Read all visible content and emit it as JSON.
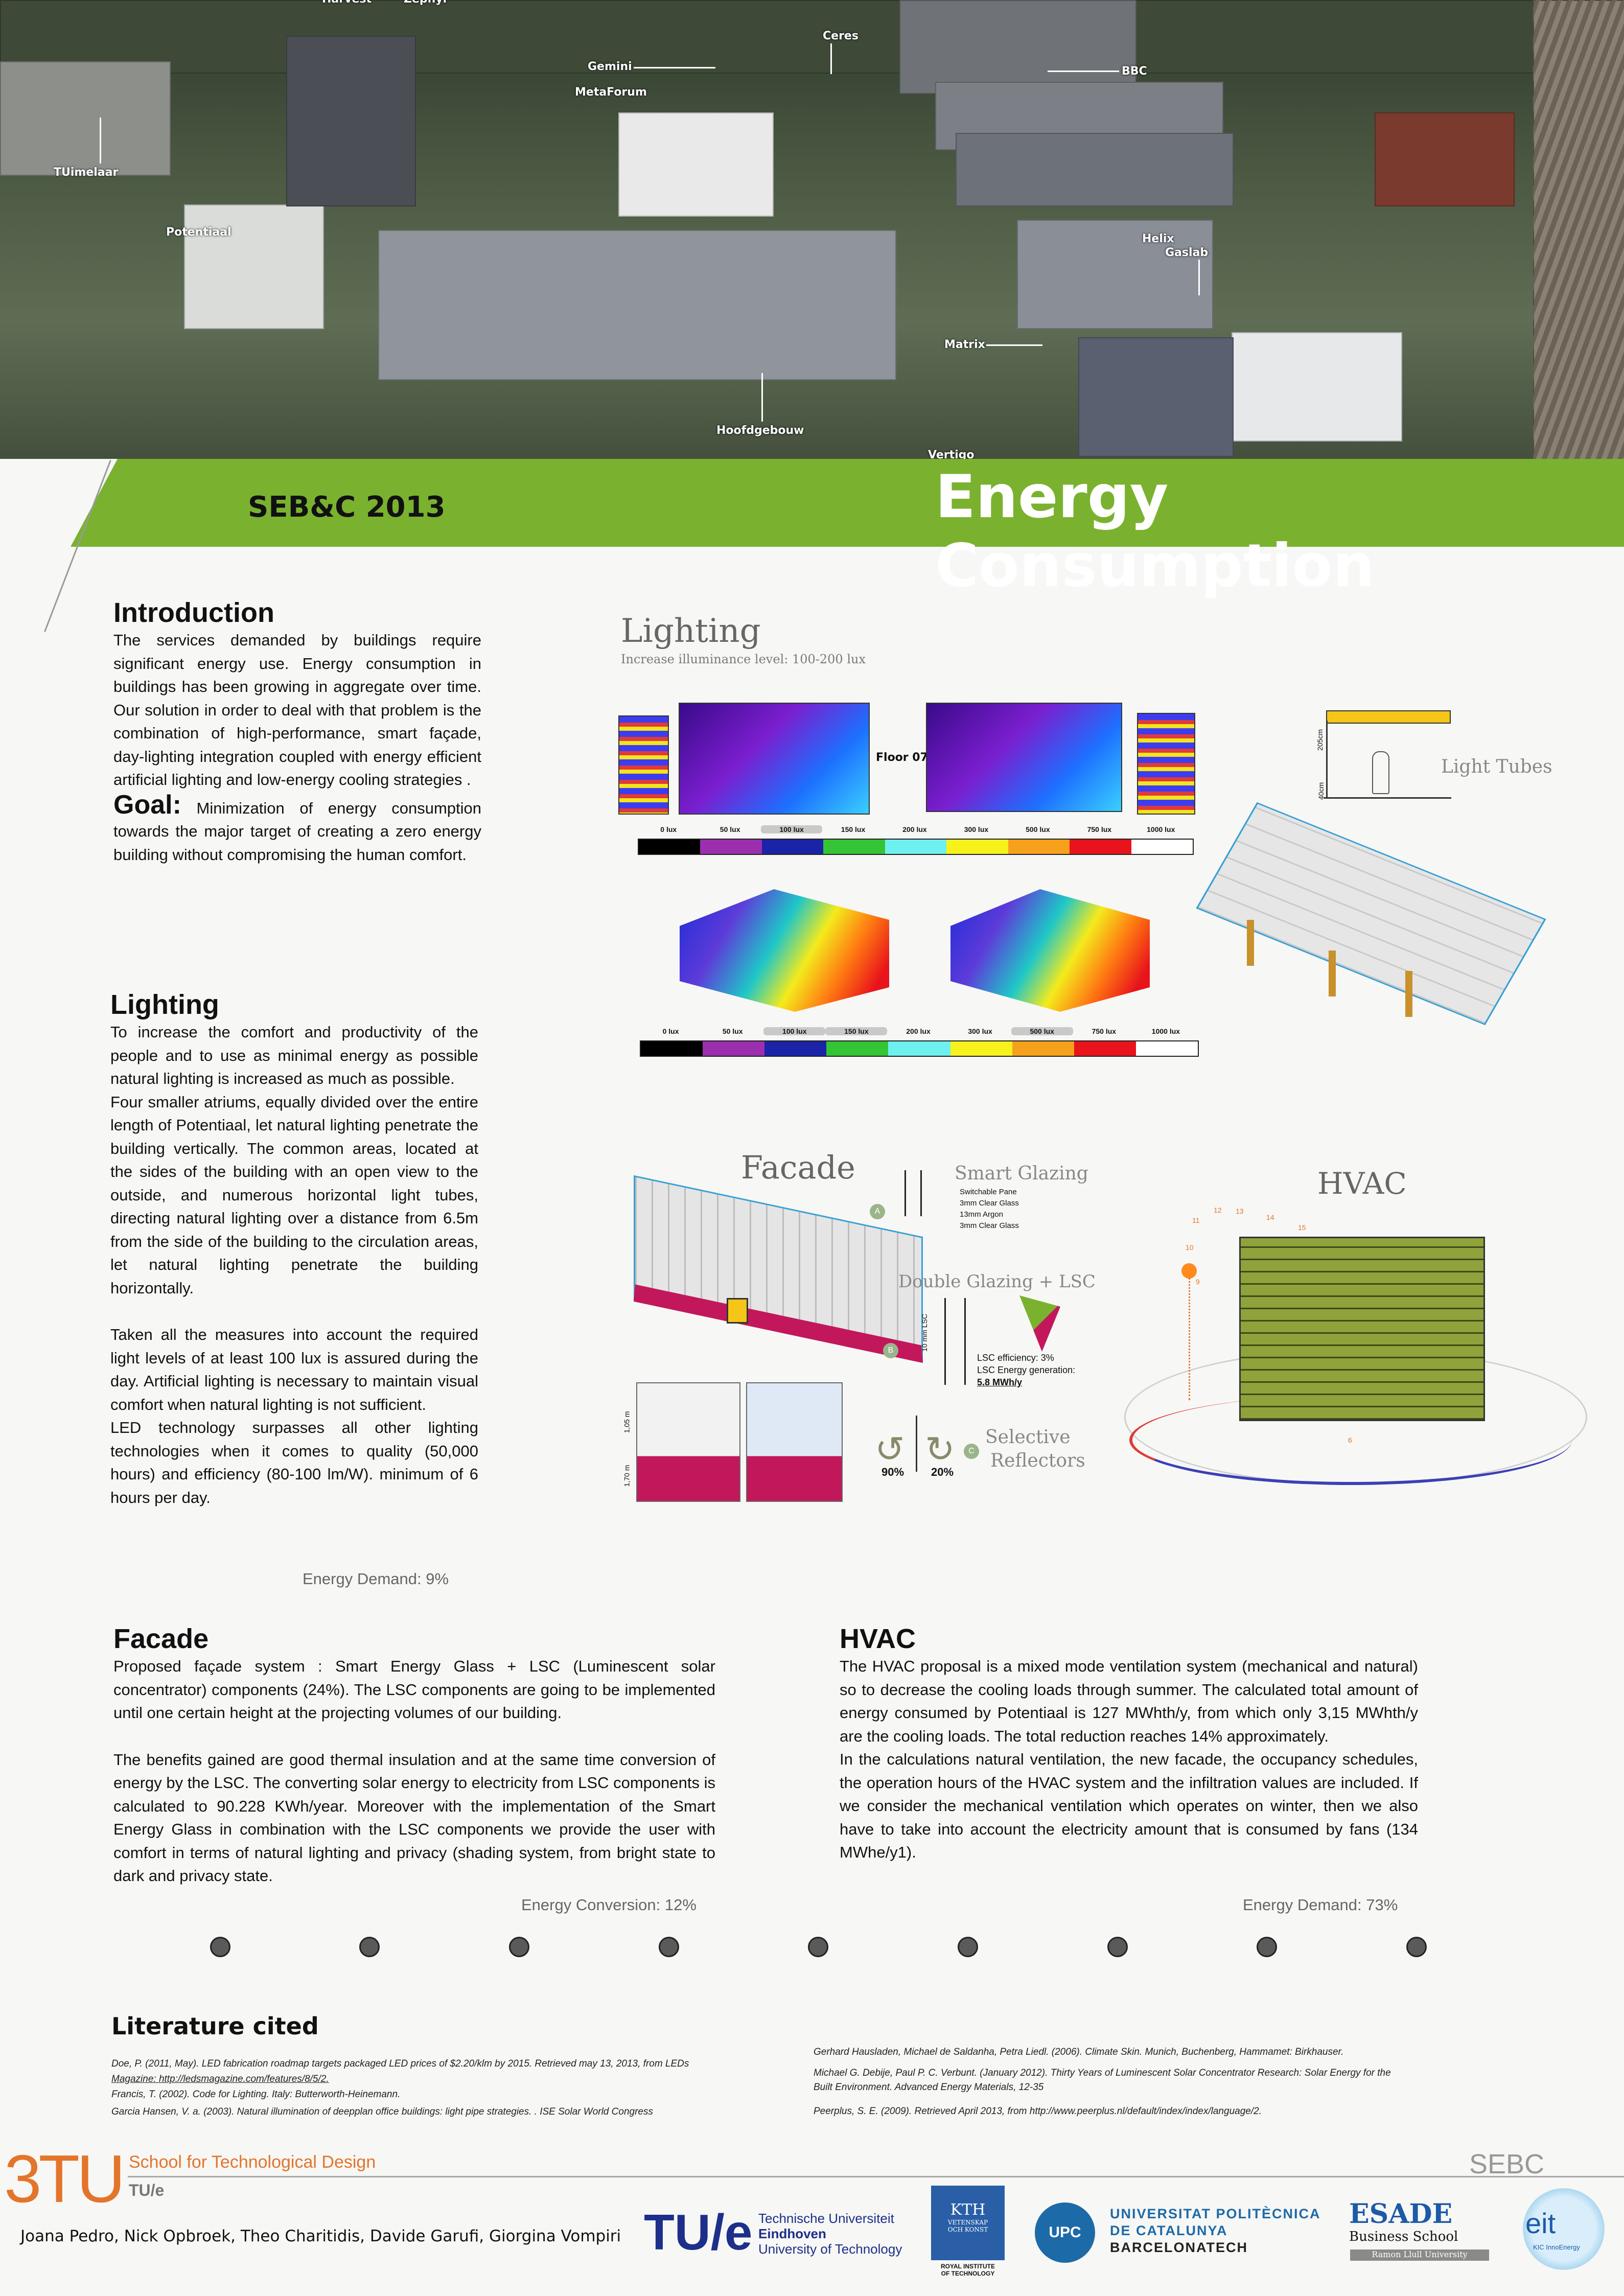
{
  "photo_labels": [
    "Gemini",
    "MetaForum",
    "Ceres",
    "TUimelaar",
    "Potentiaal",
    "BBC",
    "Helix",
    "Gaslab",
    "Matrix",
    "Hoofdgebouw",
    "Vertigo",
    "Harvest",
    "Zephyr"
  ],
  "header": {
    "event": "SEB&C 2013",
    "title": "Energy Consumption"
  },
  "introduction": {
    "heading": "Introduction",
    "text": "The services demanded by buildings require significant energy use. Energy consumption in buildings has been growing in aggregate over time. Our solution in order to deal with that problem is the combination of high-performance, smart façade, day-lighting integration coupled with energy efficient artificial lighting and low-energy cooling strategies .",
    "goal_label": "Goal:",
    "goal_text": "Minimization of energy consumption towards the major target of creating a zero energy building without compromising the human comfort."
  },
  "lighting": {
    "heading": "Lighting",
    "p1": "To increase the comfort and productivity of the people and to use as minimal energy as possible natural lighting is increased as much as possible.",
    "p2": "Four smaller atriums, equally divided over the entire length of Potentiaal, let natural lighting penetrate the building vertically. The common areas, located at the sides of the building with an open view to the outside, and numerous horizontal light tubes, directing natural lighting over a distance from 6.5m from the side of the building to the circulation areas, let natural lighting penetrate the building horizontally.",
    "p3": "Taken all the measures into account the required light levels of at least 100 lux is assured during the day. Artificial lighting is necessary to maintain visual comfort when natural lighting is not sufficient.",
    "p4": "LED technology surpasses all other lighting technologies when it comes to quality (50,000 hours) and efficiency (80-100 lm/W). minimum of 6 hours per day.",
    "demand": "Energy Demand: 9%"
  },
  "facade": {
    "heading": "Facade",
    "p1": "Proposed façade system : Smart Energy Glass + LSC (Luminescent solar concentrator) components (24%). The LSC components are going to be implemented until one certain height at the projecting volumes of our building.",
    "p2": "The benefits gained are good thermal insulation and at the same time conversion of energy by the LSC. The converting solar energy to electricity from LSC components is calculated to 90.228 KWh/year. Moreover with the implementation of the Smart Energy Glass in combination with the LSC components we provide the user with comfort in terms of natural lighting and privacy (shading system, from bright state to dark and privacy state.",
    "conversion": "Energy Conversion: 12%"
  },
  "hvac": {
    "heading": "HVAC",
    "p1": "The HVAC proposal is a mixed mode ventilation system (mechanical and natural) so to decrease the cooling loads through summer. The calculated total amount of energy consumed by Potentiaal is 127 MWhth/y, from which only 3,15 MWhth/y are the cooling loads. The total reduction reaches 14% approximately.",
    "p2": "In the calculations natural ventilation, the new facade, the occupancy schedules, the operation hours of the HVAC system and the infiltration values are included. If we consider the mechanical ventilation which operates on winter, then we also have to take into account the electricity amount that is consumed by fans (134 MWhe/y1).",
    "demand": "Energy Demand: 73%"
  },
  "figures": {
    "lighting_title": "Lighting",
    "lighting_subtitle": "Increase illuminance level: 100-200 lux",
    "floor_label": "Floor 07",
    "light_tubes": "Light Tubes",
    "dim_1": "205cm",
    "dim_2": "40cm",
    "scale1": [
      "0 lux",
      "50 lux",
      "100 lux",
      "150 lux",
      "200 lux",
      "300 lux",
      "500 lux",
      "750 lux",
      "1000 lux"
    ],
    "scale_colors": [
      "#000000",
      "#9b2fae",
      "#1b23a8",
      "#35c435",
      "#6ff0f0",
      "#f7f21b",
      "#f6a11b",
      "#e8131b",
      "#ffffff"
    ],
    "facade_title": "Facade",
    "smart_glazing": "Smart Glazing",
    "glazing_layers": [
      "Switchable Pane",
      "3mm Clear Glass",
      "13mm Argon",
      "3mm Clear Glass"
    ],
    "double_glazing": "Double Glazing + LSC",
    "lsc_dim": "10 mm LSC",
    "lsc_eff": "LSC efficiency: 3%",
    "lsc_gen": "LSC Energy generation:",
    "lsc_val": "5.8 MWh/y",
    "selective": "Selective",
    "reflectors": "Reflectors",
    "refl_90": "90%",
    "refl_20": "20%",
    "marker_a": "A",
    "marker_b": "B",
    "marker_c": "C",
    "facade_dim_1": "1,05 m",
    "facade_dim_2": "1,70 m",
    "hvac_title": "HVAC",
    "hvac_hours": [
      "12",
      "13",
      "11",
      "14",
      "10",
      "15",
      "9",
      "6"
    ]
  },
  "literature": {
    "heading": "Literature cited",
    "left": [
      "Doe, P. (2011, May). LED fabrication roadmap targets packaged LED prices of $2.20/klm by 2015. Retrieved may 13, 2013, from LEDs",
      "Magazine: http://ledsmagazine.com/features/8/5/2.",
      "Francis, T. (2002). Code for Lighting. Italy: Butterworth-Heinemann.",
      "Garcia Hansen, V. a. (2003). Natural illumination of deepplan office buildings: light pipe strategies. . ISE Solar World Congress"
    ],
    "right": [
      "Gerhard Hausladen, Michael de Saldanha, Petra Liedl. (2006). Climate Skin. Munich, Buchenberg, Hammamet: Birkhauser.",
      "Michael G. Debije, Paul P. C. Verbunt. (January 2012). Thirty Years of Luminescent Solar Concentrator Research: Solar Energy for the",
      "Built Environment. Advanced Energy Materials, 12-35",
      "Peerplus, S. E. (2009). Retrieved April 2013, from http://www.peerplus.nl/default/index/index/language/2."
    ]
  },
  "footer": {
    "logo_3tu": "3TU",
    "school": "School for Technological Design",
    "tue_small": "TU/e",
    "sebc": "SEBC",
    "authors": "Joana Pedro, Nick Opbroek, Theo Charitidis, Davide Garufi, Giorgina Vompiri",
    "tue_mark": "TU/e",
    "tue_line1": "Technische Universiteit",
    "tue_line2": "Eindhoven",
    "tue_line3": "University of Technology",
    "kth": "KTH",
    "kth_sub1": "VETENSKAP",
    "kth_sub2": "OCH KONST",
    "kth_caption1": "ROYAL INSTITUTE",
    "kth_caption2": "OF TECHNOLOGY",
    "upc_mark": "UPC",
    "upc_line1": "UNIVERSITAT POLITÈCNICA",
    "upc_line2": "DE CATALUNYA",
    "upc_line3": "BARCELONATECH",
    "esade": "ESADE",
    "esade_sub": "Business School",
    "esade_ramon": "Ramon Llull University",
    "eit": "eit",
    "eit_sub": "KIC InnoEnergy"
  },
  "colors": {
    "green": "#7ab22f",
    "magenta": "#c2185b",
    "cyan": "#3aa0d6",
    "orange": "#e3752b"
  }
}
